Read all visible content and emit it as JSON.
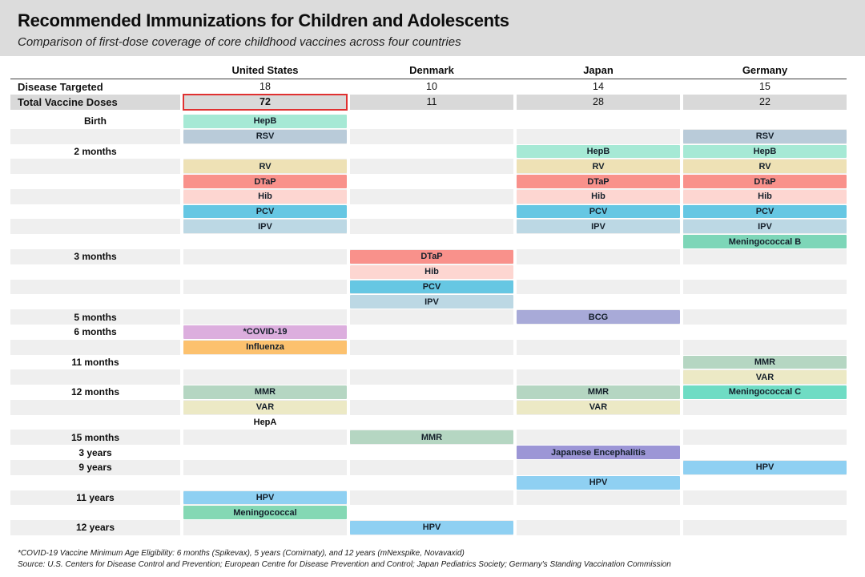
{
  "header": {
    "title": "Recommended Immunizations for Children and Adolescents",
    "subtitle": "Comparison of first-dose coverage of core childhood vaccines across four countries"
  },
  "colors": {
    "header_band": "#dcdcdc",
    "row_stripe": "#efefef",
    "stat_row_shade": "#d9d9d9",
    "highlight_red": "#e03131"
  },
  "chart_data": {
    "type": "table",
    "columns": [
      "United States",
      "Denmark",
      "Japan",
      "Germany"
    ],
    "stat_rows": [
      {
        "label": "Disease Targeted",
        "values": [
          "18",
          "10",
          "14",
          "15"
        ],
        "shaded": false,
        "highlight_col": null
      },
      {
        "label": "Total Vaccine Doses",
        "values": [
          "72",
          "11",
          "28",
          "22"
        ],
        "shaded": true,
        "highlight_col": 0
      }
    ],
    "palette": {
      "hepb": {
        "label": "HepB",
        "color": "#a6e9d5"
      },
      "rsv": {
        "label": "RSV",
        "color": "#b9cbd9"
      },
      "rv": {
        "label": "RV",
        "color": "#eee1b5"
      },
      "dtap": {
        "label": "DTaP",
        "color": "#f9918b"
      },
      "hib": {
        "label": "Hib",
        "color": "#fdd6d1"
      },
      "pcv": {
        "label": "PCV",
        "color": "#66c7e3"
      },
      "ipv": {
        "label": "IPV",
        "color": "#bcd8e4"
      },
      "menb": {
        "label": "Meningococcal B",
        "color": "#7dd6b8"
      },
      "bcg": {
        "label": "BCG",
        "color": "#a8aad8"
      },
      "covid": {
        "label": "*COVID-19",
        "color": "#dcaede"
      },
      "flu": {
        "label": "Influenza",
        "color": "#fcc16e"
      },
      "mmr": {
        "label": "MMR",
        "color": "#b5d6c2"
      },
      "var": {
        "label": "VAR",
        "color": "#ece9c5"
      },
      "menc": {
        "label": "Meningococcal C",
        "color": "#6fdcc4"
      },
      "je": {
        "label": "Japanese Encephalitis",
        "color": "#9c96d6"
      },
      "hpv": {
        "label": "HPV",
        "color": "#8fd0f2"
      },
      "men": {
        "label": "Meningococcal",
        "color": "#84d8b4"
      },
      "hepa": {
        "label": "HepA",
        "color": null
      }
    },
    "rows": [
      {
        "label": "Birth",
        "cells": [
          "hepb",
          null,
          null,
          null
        ]
      },
      {
        "label": "",
        "cells": [
          "rsv",
          null,
          null,
          "rsv"
        ]
      },
      {
        "label": "2 months",
        "cells": [
          null,
          null,
          "hepb",
          "hepb"
        ]
      },
      {
        "label": "",
        "cells": [
          "rv",
          null,
          "rv",
          "rv"
        ]
      },
      {
        "label": "",
        "cells": [
          "dtap",
          null,
          "dtap",
          "dtap"
        ]
      },
      {
        "label": "",
        "cells": [
          "hib",
          null,
          "hib",
          "hib"
        ]
      },
      {
        "label": "",
        "cells": [
          "pcv",
          null,
          "pcv",
          "pcv"
        ]
      },
      {
        "label": "",
        "cells": [
          "ipv",
          null,
          "ipv",
          "ipv"
        ]
      },
      {
        "label": "",
        "cells": [
          null,
          null,
          null,
          "menb"
        ]
      },
      {
        "label": "3 months",
        "cells": [
          null,
          "dtap",
          null,
          null
        ]
      },
      {
        "label": "",
        "cells": [
          null,
          "hib",
          null,
          null
        ]
      },
      {
        "label": "",
        "cells": [
          null,
          "pcv",
          null,
          null
        ]
      },
      {
        "label": "",
        "cells": [
          null,
          "ipv",
          null,
          null
        ]
      },
      {
        "label": "5 months",
        "cells": [
          null,
          null,
          "bcg",
          null
        ]
      },
      {
        "label": "6 months",
        "cells": [
          "covid",
          null,
          null,
          null
        ]
      },
      {
        "label": "",
        "cells": [
          "flu",
          null,
          null,
          null
        ]
      },
      {
        "label": "11 months",
        "cells": [
          null,
          null,
          null,
          "mmr"
        ]
      },
      {
        "label": "",
        "cells": [
          null,
          null,
          null,
          "var"
        ]
      },
      {
        "label": "12 months",
        "cells": [
          "mmr",
          null,
          "mmr",
          "menc"
        ]
      },
      {
        "label": "",
        "cells": [
          "var",
          null,
          "var",
          null
        ]
      },
      {
        "label": "",
        "cells": [
          "hepa",
          null,
          null,
          null
        ]
      },
      {
        "label": "15 months",
        "cells": [
          null,
          "mmr",
          null,
          null
        ]
      },
      {
        "label": "3 years",
        "cells": [
          null,
          null,
          "je",
          null
        ]
      },
      {
        "label": "9 years",
        "cells": [
          null,
          null,
          null,
          "hpv"
        ]
      },
      {
        "label": "",
        "cells": [
          null,
          null,
          "hpv",
          null
        ]
      },
      {
        "label": "11 years",
        "cells": [
          "hpv",
          null,
          null,
          null
        ]
      },
      {
        "label": "",
        "cells": [
          "men",
          null,
          null,
          null
        ]
      },
      {
        "label": "12 years",
        "cells": [
          null,
          "hpv",
          null,
          null
        ]
      }
    ]
  },
  "footer": {
    "footnote": "*COVID-19 Vaccine Minimum Age Eligibility: 6 months (Spikevax), 5 years (Comirnaty), and 12 years (mNexspike, Novavaxid)",
    "source": "Source: U.S. Centers for Disease Control and Prevention; European Centre for Disease Prevention and Control; Japan Pediatrics Society; Germany's Standing Vaccination Commission"
  }
}
